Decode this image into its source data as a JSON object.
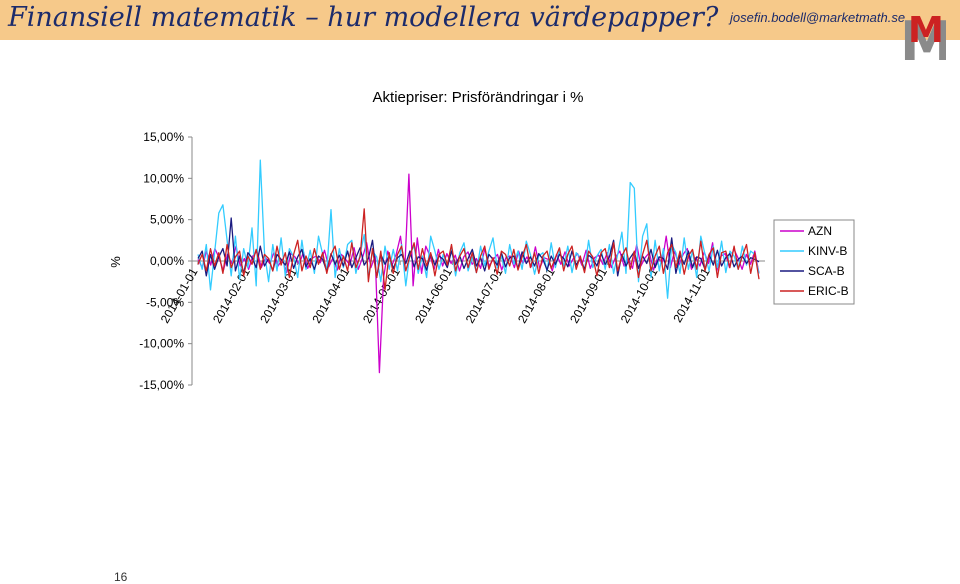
{
  "slide": {
    "title": "Finansiell matematik – hur modellera värdepapper?",
    "author_email": "josefin.bodell@marketmath.se",
    "logo_text": "M",
    "page_number": "16",
    "header_color": "#f6c98a",
    "title_color": "#1c2b6b"
  },
  "chart_data": {
    "type": "line",
    "title": "Aktiepriser: Prisförändringar i %",
    "ylabel": "%",
    "xlabel": "",
    "ylim": [
      -0.15,
      0.15
    ],
    "y_ticks": [
      "15,00%",
      "10,00%",
      "5,00%",
      "0,00%",
      "-5,00%",
      "-10,00%",
      "-15,00%"
    ],
    "x_ticks": [
      "2014-01-01",
      "2014-02-01",
      "2014-03-01",
      "2014-04-01",
      "2014-05-01",
      "2014-06-01",
      "2014-07-01",
      "2014-08-01",
      "2014-09-01",
      "2014-10-01",
      "2014-11-01"
    ],
    "x_range": [
      "2014-01-01",
      "2014-11-30"
    ],
    "legend_position": "right",
    "series": [
      {
        "name": "AZN",
        "color": "#cc00cc",
        "values": [
          0.002,
          -0.008,
          0.012,
          -0.005,
          0.015,
          0.004,
          -0.012,
          0.008,
          -0.003,
          0.018,
          -0.006,
          0.003,
          -0.01,
          0.006,
          0.012,
          -0.008,
          0.004,
          -0.003,
          0.01,
          -0.006,
          0.002,
          -0.014,
          0.009,
          0.005,
          -0.004,
          0.011,
          -0.009,
          0.003,
          0.006,
          -0.002,
          0.013,
          -0.007,
          0.004,
          -0.011,
          0.008,
          0.002,
          -0.005,
          0.016,
          -0.01,
          0.004,
          0.022,
          -0.008,
          0.006,
          -0.135,
          -0.02,
          0.012,
          -0.005,
          0.008,
          0.03,
          -0.012,
          0.105,
          -0.03,
          0.028,
          -0.015,
          0.018,
          0.006,
          -0.01,
          0.014,
          -0.006,
          0.009,
          -0.003,
          0.007,
          -0.012,
          0.005,
          0.011,
          -0.004,
          0.003,
          -0.009,
          0.015,
          -0.006,
          0.002,
          0.008,
          -0.011,
          0.004,
          0.006,
          -0.008,
          0.012,
          -0.003,
          0.005,
          -0.007,
          0.017,
          -0.009,
          0.004,
          0.002,
          -0.012,
          0.008,
          -0.004,
          0.011,
          -0.006,
          0.003,
          0.009,
          -0.005,
          0.013,
          -0.009,
          0.004,
          0.007,
          -0.004,
          0.01,
          -0.008,
          0.005,
          0.012,
          -0.006,
          0.003,
          -0.009,
          0.02,
          -0.006,
          0.004,
          0.01,
          -0.011,
          0.005,
          -0.003,
          0.03,
          -0.008,
          0.012,
          -0.005,
          0.008,
          0.015,
          -0.01,
          0.004,
          -0.006,
          0.011,
          -0.003,
          0.022,
          -0.012,
          0.006,
          0.009,
          -0.008,
          0.015,
          0.004,
          -0.01,
          0.008,
          -0.004,
          0.012,
          -0.015
        ]
      },
      {
        "name": "KINV-B",
        "color": "#33ccff",
        "values": [
          0.008,
          -0.01,
          0.02,
          -0.035,
          0.01,
          0.058,
          0.068,
          0.025,
          -0.018,
          0.03,
          -0.022,
          0.015,
          -0.008,
          0.04,
          -0.03,
          0.122,
          0.01,
          -0.025,
          0.02,
          -0.012,
          0.028,
          -0.018,
          0.015,
          0.005,
          -0.02,
          0.025,
          -0.01,
          0.013,
          -0.015,
          0.03,
          0.008,
          -0.012,
          0.062,
          -0.02,
          0.015,
          -0.008,
          0.02,
          0.025,
          -0.015,
          0.008,
          0.032,
          -0.02,
          0.012,
          0.005,
          -0.025,
          0.018,
          -0.01,
          0.014,
          -0.012,
          0.02,
          -0.03,
          0.009,
          0.018,
          -0.015,
          0.006,
          -0.02,
          0.03,
          0.012,
          -0.01,
          0.008,
          -0.006,
          0.015,
          -0.018,
          0.01,
          0.022,
          -0.012,
          0.005,
          -0.014,
          0.018,
          -0.006,
          0.012,
          0.028,
          -0.008,
          0.006,
          -0.015,
          0.02,
          -0.004,
          0.012,
          -0.01,
          0.024,
          0.008,
          -0.016,
          0.006,
          0.01,
          -0.012,
          0.022,
          -0.008,
          0.013,
          -0.006,
          0.018,
          -0.014,
          0.01,
          0.004,
          -0.012,
          0.025,
          -0.008,
          0.006,
          0.014,
          -0.01,
          0.02,
          -0.015,
          0.008,
          0.035,
          -0.015,
          0.095,
          0.088,
          -0.025,
          0.03,
          0.045,
          -0.02,
          0.025,
          -0.012,
          0.015,
          -0.045,
          0.02,
          0.01,
          -0.015,
          0.028,
          -0.01,
          0.012,
          -0.02,
          0.03,
          0.008,
          -0.012,
          0.018,
          -0.008,
          0.024,
          -0.014,
          0.012,
          0.006,
          -0.01,
          0.018,
          -0.005,
          0.012,
          0.008,
          -0.015
        ]
      },
      {
        "name": "SCA-B",
        "color": "#1a1a80",
        "values": [
          0.003,
          0.012,
          -0.018,
          0.008,
          -0.01,
          0.005,
          0.015,
          -0.006,
          0.052,
          -0.012,
          0.006,
          -0.015,
          0.01,
          0.004,
          -0.008,
          0.018,
          -0.006,
          0.003,
          -0.012,
          0.008,
          0.002,
          -0.005,
          0.011,
          -0.009,
          0.005,
          0.014,
          -0.007,
          0.003,
          -0.01,
          0.006,
          0.002,
          -0.013,
          0.009,
          -0.004,
          0.007,
          -0.006,
          0.012,
          -0.008,
          0.004,
          0.016,
          -0.005,
          0.003,
          0.025,
          -0.02,
          0.008,
          -0.004,
          0.006,
          -0.009,
          0.004,
          0.008,
          -0.003,
          0.012,
          -0.007,
          0.005,
          0.003,
          -0.011,
          0.009,
          -0.005,
          0.006,
          0.002,
          -0.008,
          0.012,
          -0.004,
          0.006,
          -0.009,
          0.003,
          0.014,
          -0.006,
          0.004,
          -0.012,
          0.008,
          0.002,
          -0.005,
          0.01,
          -0.007,
          0.004,
          0.006,
          -0.009,
          0.011,
          -0.003,
          0.005,
          -0.006,
          0.009,
          0.002,
          -0.011,
          0.006,
          -0.004,
          0.008,
          0.003,
          -0.007,
          0.012,
          -0.005,
          0.004,
          -0.01,
          0.007,
          0.003,
          -0.006,
          0.009,
          -0.004,
          0.005,
          0.025,
          -0.018,
          0.008,
          -0.006,
          0.004,
          0.011,
          -0.009,
          0.006,
          -0.003,
          0.014,
          -0.008,
          0.005,
          0.003,
          -0.01,
          0.028,
          -0.015,
          0.007,
          -0.004,
          0.012,
          -0.008,
          0.005,
          0.003,
          -0.01,
          0.008,
          -0.005,
          0.013,
          -0.006,
          0.004,
          0.009,
          -0.007,
          0.002,
          0.006,
          -0.003,
          0.004,
          0.002,
          -0.001
        ]
      },
      {
        "name": "ERIC-B",
        "color": "#cc2222",
        "values": [
          -0.004,
          0.008,
          -0.012,
          0.015,
          -0.006,
          0.01,
          -0.015,
          0.02,
          -0.008,
          0.005,
          0.012,
          -0.018,
          0.006,
          -0.004,
          0.014,
          -0.01,
          0.008,
          0.003,
          -0.012,
          0.018,
          -0.005,
          0.01,
          -0.02,
          0.008,
          0.025,
          -0.012,
          0.006,
          -0.008,
          0.015,
          -0.004,
          0.01,
          -0.015,
          0.008,
          0.018,
          -0.01,
          0.006,
          -0.012,
          0.022,
          -0.008,
          0.005,
          0.063,
          -0.025,
          0.015,
          -0.02,
          0.012,
          -0.035,
          0.01,
          -0.015,
          0.008,
          0.018,
          -0.012,
          0.006,
          0.022,
          -0.01,
          0.015,
          -0.006,
          0.01,
          -0.018,
          0.008,
          0.012,
          -0.005,
          0.02,
          -0.012,
          0.006,
          0.015,
          -0.008,
          0.01,
          -0.014,
          0.006,
          0.018,
          -0.01,
          0.004,
          -0.016,
          0.012,
          0.008,
          -0.006,
          0.014,
          -0.011,
          0.005,
          0.02,
          -0.008,
          0.01,
          -0.015,
          0.006,
          0.012,
          -0.009,
          0.004,
          0.016,
          -0.012,
          0.008,
          0.018,
          -0.01,
          0.006,
          -0.014,
          0.012,
          0.005,
          -0.018,
          0.01,
          0.015,
          -0.008,
          0.022,
          -0.012,
          0.006,
          0.016,
          -0.01,
          0.012,
          -0.02,
          0.008,
          0.025,
          -0.012,
          0.006,
          0.018,
          -0.015,
          0.01,
          0.02,
          -0.008,
          0.012,
          -0.016,
          0.006,
          0.014,
          -0.01,
          0.024,
          -0.012,
          0.008,
          0.016,
          -0.02,
          0.01,
          0.012,
          -0.008,
          0.018,
          -0.01,
          0.006,
          0.02,
          -0.015,
          0.01,
          -0.022
        ]
      }
    ]
  }
}
